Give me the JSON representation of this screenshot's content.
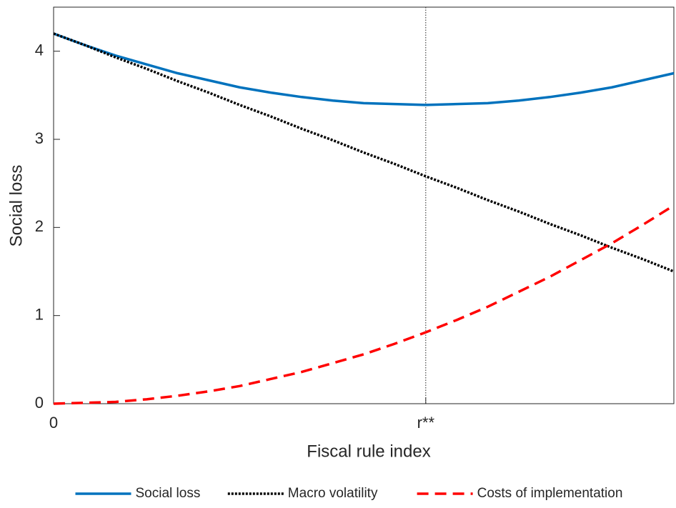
{
  "chart_data": {
    "type": "line",
    "xlabel": "Fiscal rule index",
    "ylabel": "Social loss",
    "x": [
      0,
      0.05,
      0.1,
      0.15,
      0.2,
      0.25,
      0.3,
      0.35,
      0.4,
      0.45,
      0.5,
      0.55,
      0.6,
      0.65,
      0.7,
      0.75,
      0.8,
      0.85,
      0.9,
      0.95,
      1
    ],
    "series": [
      {
        "name": "Social loss",
        "color": "#0072bd",
        "style": "solid",
        "values": [
          4.2,
          4.07,
          3.95,
          3.85,
          3.75,
          3.67,
          3.59,
          3.53,
          3.48,
          3.44,
          3.41,
          3.4,
          3.39,
          3.4,
          3.41,
          3.44,
          3.48,
          3.53,
          3.59,
          3.67,
          3.75
        ]
      },
      {
        "name": "Macro volatility",
        "color": "#000000",
        "style": "dotted",
        "values": [
          4.2,
          4.07,
          3.93,
          3.8,
          3.66,
          3.53,
          3.39,
          3.26,
          3.12,
          2.99,
          2.85,
          2.72,
          2.58,
          2.45,
          2.31,
          2.18,
          2.04,
          1.91,
          1.77,
          1.64,
          1.5
        ]
      },
      {
        "name": "Costs of implementation",
        "color": "#ff0000",
        "style": "dashed",
        "values": [
          0,
          0.01,
          0.02,
          0.05,
          0.09,
          0.14,
          0.2,
          0.28,
          0.36,
          0.46,
          0.56,
          0.68,
          0.81,
          0.95,
          1.1,
          1.27,
          1.44,
          1.63,
          1.82,
          2.03,
          2.25
        ]
      }
    ],
    "xlim": [
      0,
      1
    ],
    "xticks": [
      0,
      {
        "value": 0.6,
        "label": "r**"
      }
    ],
    "ylim": [
      0,
      4.5
    ],
    "yticks": [
      0,
      1,
      2,
      3,
      4
    ],
    "vline": true,
    "legend": "bottom"
  }
}
